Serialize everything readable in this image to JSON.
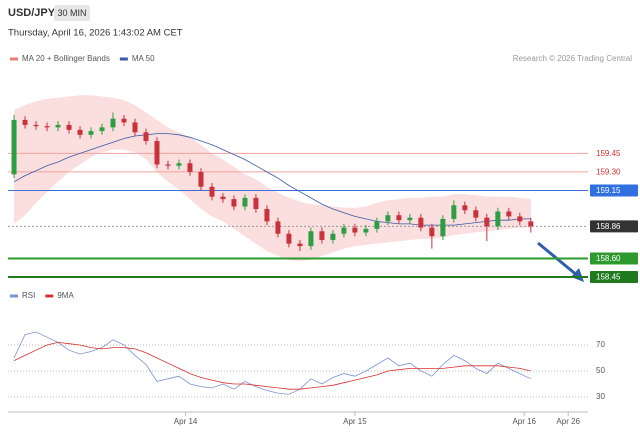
{
  "header": {
    "symbol": "USD/JPY",
    "interval": "30 MIN",
    "timestamp": "Thursday, April 16, 2026 1:43:02 AM CET",
    "credit": "Research © 2026 Trading Central"
  },
  "chart_data": [
    {
      "type": "candlestick",
      "up_color": "#2e9e44",
      "down_color": "#c8323c",
      "open": [
        159.28,
        159.72,
        159.68,
        159.67,
        159.66,
        159.68,
        159.64,
        159.6,
        159.63,
        159.66,
        159.73,
        159.7,
        159.62,
        159.55,
        159.36,
        159.35,
        159.37,
        159.3,
        159.18,
        159.1,
        159.08,
        159.02,
        159.09,
        159.0,
        158.9,
        158.8,
        158.72,
        158.7,
        158.82,
        158.75,
        158.8,
        158.85,
        158.81,
        158.84,
        158.9,
        158.95,
        158.91,
        158.93,
        158.85,
        158.78,
        158.92,
        159.03,
        158.99,
        158.93,
        158.86,
        158.98,
        158.94,
        158.9
      ],
      "high": [
        159.76,
        159.75,
        159.71,
        159.7,
        159.71,
        159.71,
        159.67,
        159.66,
        159.69,
        159.78,
        159.76,
        159.73,
        159.65,
        159.58,
        159.39,
        159.4,
        159.4,
        159.33,
        159.21,
        159.13,
        159.11,
        159.12,
        159.12,
        159.03,
        158.93,
        158.83,
        158.75,
        158.85,
        158.85,
        158.83,
        158.88,
        158.88,
        158.87,
        158.93,
        158.98,
        158.98,
        158.96,
        158.96,
        158.88,
        158.95,
        159.07,
        159.06,
        159.02,
        158.96,
        159.01,
        159.01,
        158.97,
        158.93
      ],
      "low": [
        159.25,
        159.65,
        159.64,
        159.63,
        159.63,
        159.61,
        159.57,
        159.57,
        159.6,
        159.63,
        159.67,
        159.59,
        159.52,
        159.33,
        159.32,
        159.32,
        159.27,
        159.15,
        159.07,
        159.05,
        158.99,
        158.99,
        158.97,
        158.87,
        158.77,
        158.69,
        158.66,
        158.67,
        158.72,
        158.72,
        158.77,
        158.78,
        158.78,
        158.81,
        158.87,
        158.88,
        158.88,
        158.82,
        158.68,
        158.75,
        158.89,
        158.96,
        158.9,
        158.74,
        158.83,
        158.91,
        158.87,
        158.81
      ],
      "close": [
        159.72,
        159.68,
        159.67,
        159.66,
        159.68,
        159.64,
        159.6,
        159.63,
        159.66,
        159.73,
        159.7,
        159.62,
        159.55,
        159.36,
        159.35,
        159.37,
        159.3,
        159.18,
        159.1,
        159.08,
        159.02,
        159.09,
        159.0,
        158.9,
        158.8,
        158.72,
        158.7,
        158.82,
        158.75,
        158.8,
        158.85,
        158.81,
        158.84,
        158.9,
        158.95,
        158.91,
        158.93,
        158.85,
        158.78,
        158.92,
        159.03,
        158.99,
        158.93,
        158.86,
        158.98,
        158.94,
        158.9,
        158.86
      ],
      "series": [
        {
          "name": "MA 20 + Bollinger Bands",
          "color": "#f07a7a",
          "upper": [
            159.8,
            159.84,
            159.87,
            159.89,
            159.9,
            159.91,
            159.92,
            159.92,
            159.91,
            159.9,
            159.88,
            159.84,
            159.78,
            159.72,
            159.66,
            159.62,
            159.58,
            159.52,
            159.45,
            159.4,
            159.34,
            159.28,
            159.24,
            159.18,
            159.13,
            159.09,
            159.06,
            159.04,
            159.03,
            159.02,
            159.01,
            159.01,
            159.02,
            159.05,
            159.07,
            159.08,
            159.09,
            159.09,
            159.1,
            159.1,
            159.12,
            159.12,
            159.11,
            159.1,
            159.1,
            159.1,
            159.09,
            159.08
          ],
          "lower": [
            158.88,
            158.95,
            159.05,
            159.14,
            159.22,
            159.3,
            159.36,
            159.42,
            159.46,
            159.48,
            159.48,
            159.46,
            159.4,
            159.3,
            159.22,
            159.16,
            159.08,
            159.0,
            158.94,
            158.9,
            158.84,
            158.78,
            158.72,
            158.66,
            158.62,
            158.59,
            158.58,
            158.59,
            158.62,
            158.65,
            158.68,
            158.7,
            158.71,
            158.72,
            158.73,
            158.74,
            158.75,
            158.76,
            158.76,
            158.77,
            158.79,
            158.8,
            158.81,
            158.82,
            158.83,
            158.84,
            158.85,
            158.85
          ]
        },
        {
          "name": "MA 50",
          "color": "#3a5ba8",
          "values": [
            159.22,
            159.27,
            159.31,
            159.35,
            159.38,
            159.42,
            159.45,
            159.48,
            159.51,
            159.54,
            159.57,
            159.59,
            159.6,
            159.61,
            159.61,
            159.6,
            159.58,
            159.55,
            159.52,
            159.48,
            159.44,
            159.4,
            159.35,
            159.3,
            159.25,
            159.19,
            159.14,
            159.09,
            159.04,
            159.0,
            158.97,
            158.94,
            158.92,
            158.9,
            158.89,
            158.88,
            158.88,
            158.87,
            158.87,
            158.87,
            158.87,
            158.88,
            158.89,
            158.9,
            158.91,
            158.91,
            158.92,
            158.92
          ]
        }
      ],
      "levels": [
        {
          "value": 159.45,
          "color": "#f2a0a0",
          "text_color": "#d32f2f"
        },
        {
          "value": 159.3,
          "label": "159.30",
          "color": "#f2a0a0",
          "text_color": "#d32f2f"
        },
        {
          "value": 159.15,
          "color": "#3d6fd6",
          "box": "#2f6fe0"
        },
        {
          "value": 158.86,
          "color": "#999999",
          "box": "#333333",
          "dotted": true
        },
        {
          "value": 158.6,
          "label": "158.60",
          "color": "#2e9a2e",
          "box": "#2e9a2e"
        },
        {
          "value": 158.45,
          "color": "#1f7a1f",
          "box": "#1f7a1f"
        }
      ],
      "xlim": [
        -0.55,
        52.2
      ],
      "ylim": [
        158.41,
        160.14
      ],
      "xticks": [
        {
          "value": 15.6,
          "label": "Apr 14"
        },
        {
          "value": 31,
          "label": "Apr 15"
        },
        {
          "value": 46.4,
          "label": "Apr 16"
        },
        {
          "value": 50.4,
          "label": "Apr 26"
        }
      ]
    },
    {
      "type": "line",
      "xlim": [
        -0.55,
        52.2
      ],
      "ylim": [
        20,
        100
      ],
      "yticks": [
        30,
        50,
        70
      ],
      "series": [
        {
          "name": "RSI",
          "color": "#7d92d2",
          "values": [
            60,
            78,
            80,
            76,
            72,
            66,
            63,
            65,
            68,
            74,
            70,
            62,
            55,
            42,
            44,
            46,
            40,
            38,
            37,
            40,
            36,
            42,
            38,
            35,
            33,
            32,
            36,
            44,
            40,
            45,
            48,
            46,
            50,
            55,
            60,
            54,
            56,
            50,
            46,
            55,
            62,
            58,
            52,
            48,
            56,
            52,
            48,
            44
          ]
        },
        {
          "name": "9MA",
          "color": "#d83030",
          "values": [
            58,
            62,
            66,
            70,
            72,
            71,
            70,
            68,
            67,
            68,
            68,
            67,
            64,
            60,
            56,
            52,
            48,
            45,
            43,
            41,
            40,
            40,
            39,
            38,
            37,
            36,
            36,
            37,
            38,
            39,
            41,
            43,
            45,
            47,
            50,
            51,
            52,
            52,
            52,
            52,
            53,
            54,
            54,
            54,
            54,
            53,
            52,
            50
          ]
        }
      ]
    }
  ]
}
